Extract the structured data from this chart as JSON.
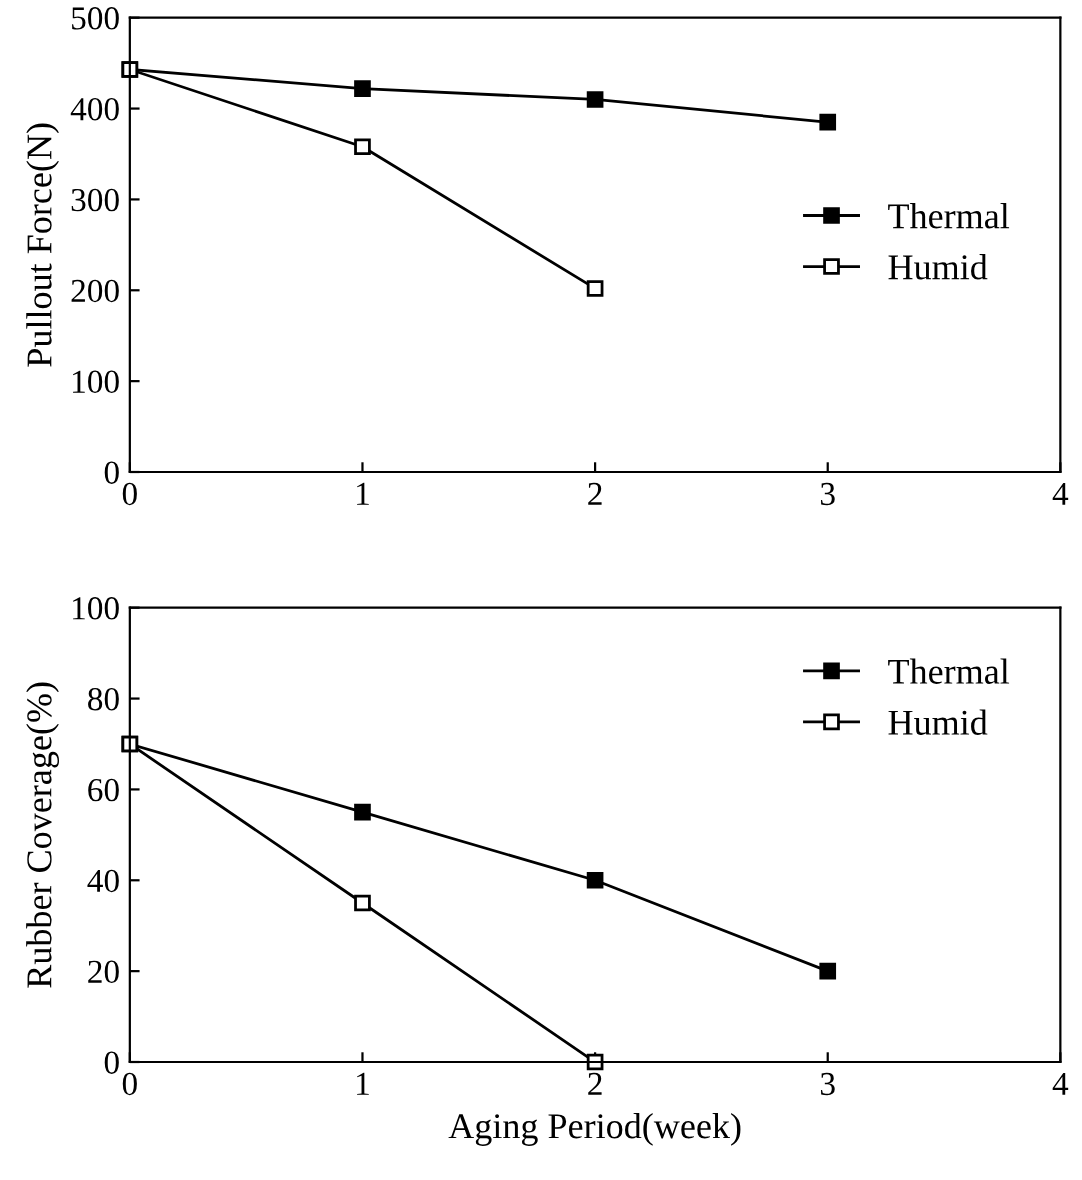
{
  "chart_data": [
    {
      "type": "line",
      "ylabel": "Pullout Force(N)",
      "x": [
        0,
        1,
        2,
        3
      ],
      "xlim": [
        0,
        4
      ],
      "xticks": [
        0,
        1,
        2,
        3,
        4
      ],
      "ylim": [
        0,
        500
      ],
      "yticks": [
        0,
        100,
        200,
        300,
        400,
        500
      ],
      "marker": "square",
      "legend": "right",
      "grid": false,
      "series": [
        {
          "name": "Thermal",
          "color": "#000000",
          "values": [
            443,
            422,
            410,
            385
          ]
        },
        {
          "name": "Humid",
          "color": "#000000",
          "values": [
            443,
            358,
            202,
            null
          ]
        }
      ]
    },
    {
      "type": "line",
      "ylabel": "Rubber Coverage(%)",
      "xlabel": "Aging Period(week)",
      "x": [
        0,
        1,
        2,
        3
      ],
      "xlim": [
        0,
        4
      ],
      "xticks": [
        0,
        1,
        2,
        3,
        4
      ],
      "ylim": [
        0,
        100
      ],
      "yticks": [
        0,
        20,
        40,
        60,
        80,
        100
      ],
      "marker": "square",
      "legend": "top right",
      "grid": false,
      "series": [
        {
          "name": "Thermal",
          "color": "#000000",
          "values": [
            70,
            55,
            40,
            20
          ]
        },
        {
          "name": "Humid",
          "color": "#000000",
          "values": [
            70,
            35,
            0,
            null
          ]
        }
      ]
    }
  ]
}
